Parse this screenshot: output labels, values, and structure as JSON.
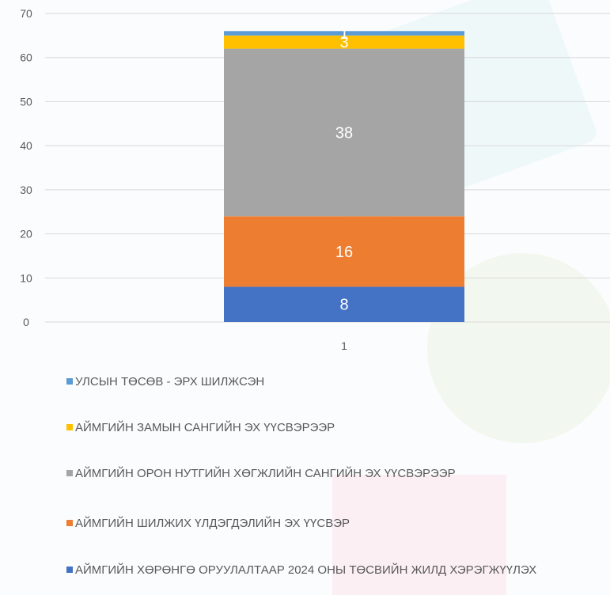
{
  "chart_data": {
    "type": "stacked_bar",
    "categories": [
      "1"
    ],
    "series": [
      {
        "name": "АЙМГИЙН ХӨРӨНГӨ ОРУУЛАЛТААР 2024 ОНЫ ТӨСВИЙН ЖИЛД ХЭРЭГЖҮҮЛЭХ",
        "color": "#4472c4",
        "values": [
          8
        ]
      },
      {
        "name": "АЙМГИЙН ШИЛЖИХ ҮЛДЭГДЭЛИЙН ЭХ ҮҮСВЭР",
        "color": "#ed7d31",
        "values": [
          16
        ]
      },
      {
        "name": "АЙМГИЙН ОРОН НУТГИЙН ХӨГЖЛИЙН САНГИЙН ЭХ ҮҮСВЭРЭЭР",
        "color": "#a5a5a5",
        "values": [
          38
        ]
      },
      {
        "name": "АЙМГИЙН ЗАМЫН САНГИЙН ЭХ ҮҮСВЭРЭЭР",
        "color": "#ffc000",
        "values": [
          3
        ]
      },
      {
        "name": "УЛСЫН ТӨСӨВ - ЭРХ ШИЛЖСЭН",
        "color": "#5b9bd5",
        "values": [
          1
        ]
      }
    ],
    "ylim": [
      0,
      70
    ],
    "yticks": [
      0,
      10,
      20,
      30,
      40,
      50,
      60,
      70
    ],
    "grid": true,
    "legend": "bottom"
  }
}
